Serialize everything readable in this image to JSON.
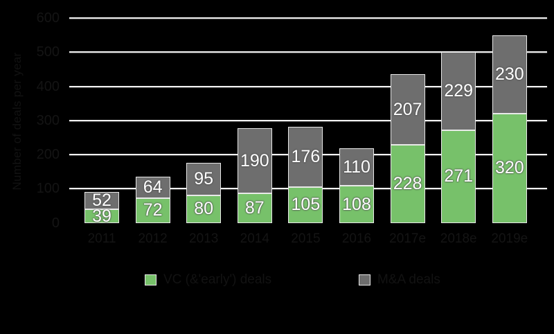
{
  "chart_data": {
    "type": "bar",
    "stacked": true,
    "title": "",
    "categories": [
      "2011",
      "2012",
      "2013",
      "2014",
      "2015",
      "2016",
      "2017e",
      "2018e",
      "2019e"
    ],
    "series": [
      {
        "name": "VC (&'early') deals",
        "color": "#77c16a",
        "values": [
          39,
          72,
          80,
          87,
          105,
          108,
          228,
          271,
          320
        ]
      },
      {
        "name": "M&A deals",
        "color": "#6e6e6e",
        "values": [
          52,
          64,
          95,
          190,
          176,
          110,
          207,
          229,
          230
        ]
      }
    ],
    "totals": [
      91,
      136,
      175,
      277,
      281,
      218,
      435,
      500,
      550
    ],
    "xlabel": "",
    "ylabel": "Number of deals per year",
    "ylim": [
      0,
      600
    ],
    "yticks": [
      0,
      100,
      200,
      300,
      400,
      500,
      600
    ],
    "grid": true,
    "legend_position": "bottom",
    "value_labels": "inside-center"
  },
  "colors": {
    "background": "#000000",
    "gridline": "#f2f2f2",
    "bar_border": "#e9e9e9",
    "bar_value_text": "#ffffff",
    "axis_text": "#141414",
    "series_green": "#77c16a",
    "series_gray": "#6e6e6e"
  }
}
